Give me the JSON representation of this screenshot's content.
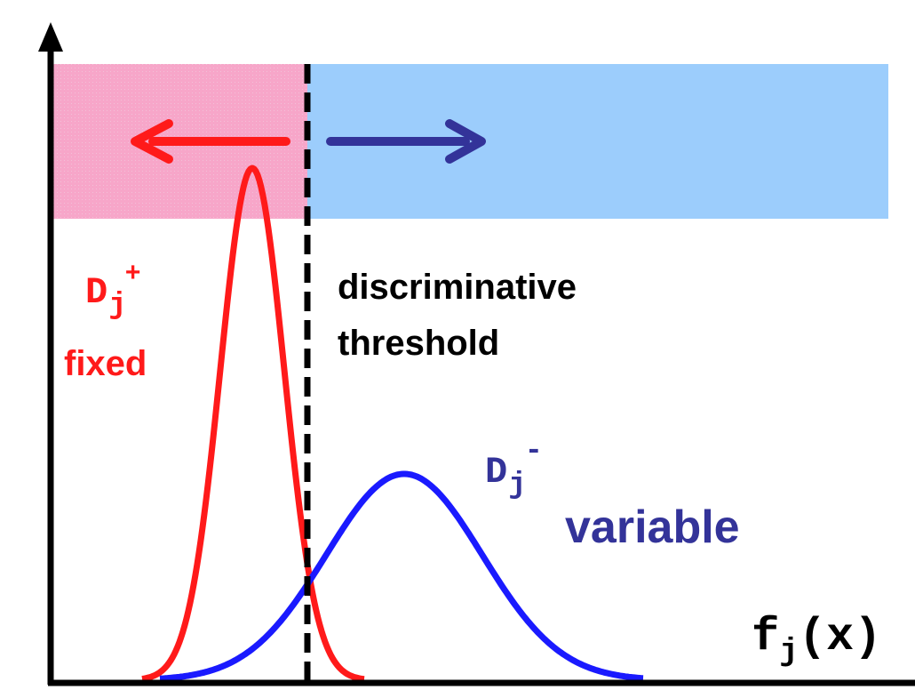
{
  "colors": {
    "background": "#ffffff",
    "pos_region": "#f7a6c9",
    "neg_region": "#9ccdfc",
    "pos_curve": "#ff1a1a",
    "neg_curve": "#1a1aff",
    "left_arrow": "#ff1a1a",
    "right_arrow": "#333399",
    "axis": "#000000",
    "threshold": "#000000",
    "neg_label": "#333399"
  },
  "positive": {
    "symbol": "D",
    "subscript": "j",
    "superscript": "+",
    "label": "fixed"
  },
  "negative": {
    "symbol": "D",
    "subscript": "j",
    "superscript": "-",
    "label": "variable"
  },
  "threshold": {
    "line1": "discriminative",
    "line2": "threshold"
  },
  "axis": {
    "x_symbol": "f",
    "x_subscript": "j",
    "x_arg": "(x)"
  },
  "icons": {
    "left": "arrow-left-icon",
    "right": "arrow-right-icon"
  }
}
